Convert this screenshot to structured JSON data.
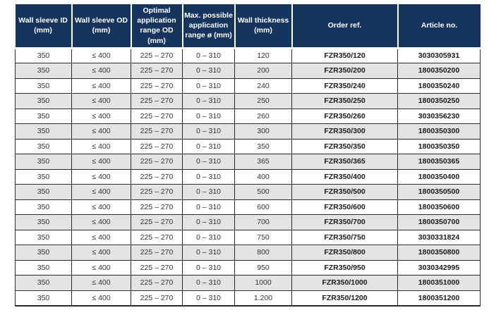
{
  "colors": {
    "header_bg": "#15355e",
    "header_text": "#ffffff",
    "row_alt_bg": "#e4e4e4",
    "border": "#2b2b2b"
  },
  "table": {
    "headers": [
      "Wall sleeve ID\n(mm)",
      "Wall sleeve OD\n(mm)",
      "Optimal\napplication\nrange OD\n(mm)",
      "Max. possible\napplication\nrange ø (mm)",
      "Wall thickness\n(mm)",
      "Order ref.",
      "Article no."
    ],
    "rows": [
      [
        "350",
        "≤ 400",
        "225 – 270",
        "0 – 310",
        "120",
        "FZR350/120",
        "3030305931"
      ],
      [
        "350",
        "≤ 400",
        "225 – 270",
        "0 – 310",
        "200",
        "FZR350/200",
        "1800350200"
      ],
      [
        "350",
        "≤ 400",
        "225 – 270",
        "0 – 310",
        "240",
        "FZR350/240",
        "1800350240"
      ],
      [
        "350",
        "≤ 400",
        "225 – 270",
        "0 – 310",
        "250",
        "FZR350/250",
        "1800350250"
      ],
      [
        "350",
        "≤ 400",
        "225 – 270",
        "0 – 310",
        "260",
        "FZR350/260",
        "3030356230"
      ],
      [
        "350",
        "≤ 400",
        "225 – 270",
        "0 – 310",
        "300",
        "FZR350/300",
        "1800350300"
      ],
      [
        "350",
        "≤ 400",
        "225 – 270",
        "0 – 310",
        "350",
        "FZR350/350",
        "1800350350"
      ],
      [
        "350",
        "≤ 400",
        "225 – 270",
        "0 – 310",
        "365",
        "FZR350/365",
        "1800350365"
      ],
      [
        "350",
        "≤ 400",
        "225 – 270",
        "0 – 310",
        "400",
        "FZR350/400",
        "1800350400"
      ],
      [
        "350",
        "≤ 400",
        "225 – 270",
        "0 – 310",
        "500",
        "FZR350/500",
        "1800350500"
      ],
      [
        "350",
        "≤ 400",
        "225 – 270",
        "0 – 310",
        "600",
        "FZR350/600",
        "1800350600"
      ],
      [
        "350",
        "≤ 400",
        "225 – 270",
        "0 – 310",
        "700",
        "FZR350/700",
        "1800350700"
      ],
      [
        "350",
        "≤ 400",
        "225 – 270",
        "0 – 310",
        "750",
        "FZR350/750",
        "3030331824"
      ],
      [
        "350",
        "≤ 400",
        "225 – 270",
        "0 – 310",
        "800",
        "FZR350/800",
        "1800350800"
      ],
      [
        "350",
        "≤ 400",
        "225 – 270",
        "0 – 310",
        "950",
        "FZR350/950",
        "3030342995"
      ],
      [
        "350",
        "≤ 400",
        "225 – 270",
        "0 – 310",
        "1000",
        "FZR350/1000",
        "1800351000"
      ],
      [
        "350",
        "≤ 400",
        "225 – 270",
        "0 – 310",
        "1.200",
        "FZR350/1200",
        "1800351200"
      ]
    ]
  }
}
